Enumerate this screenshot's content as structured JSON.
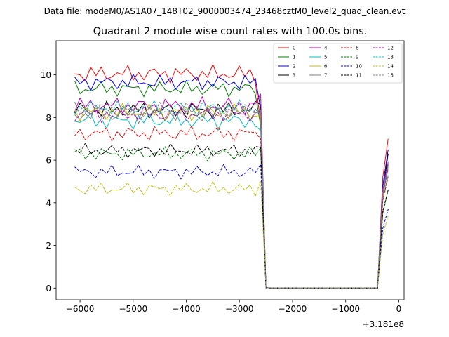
{
  "chart_data": {
    "type": "line",
    "suptitle": "Data file: modeM0/AS1A07_148T02_9000003474_23468cztM0_level2_quad_clean.evt",
    "title": "Quadrant 2 module wise count rates with 100.0s bins.",
    "xlabel": "",
    "ylabel": "",
    "offset_text": "+3.181e8",
    "xlim": [
      -6450,
      100
    ],
    "ylim": [
      -0.55,
      11.6
    ],
    "xticks": [
      -6000,
      -5000,
      -4000,
      -3000,
      -2000,
      -1000,
      0
    ],
    "xtick_labels": [
      "−6000",
      "−5000",
      "−4000",
      "−3000",
      "−2000",
      "−1000",
      "0"
    ],
    "yticks": [
      0,
      2,
      4,
      6,
      8,
      10
    ],
    "ytick_labels": [
      "0",
      "2",
      "4",
      "6",
      "8",
      "10"
    ],
    "legend_position": "upper right",
    "legend_columns": 4,
    "segment1_x_start": -6100,
    "segment1_x_end": -2600,
    "segment1_x_step": 100,
    "drop_x": -2500,
    "flat_x_end": -400,
    "segment2_x": [
      -300,
      -200
    ],
    "series": [
      {
        "name": "0",
        "color": "#ff0000",
        "dash": "solid",
        "mean": 10.05,
        "amp": 0.45,
        "end": 7.8,
        "drop": 0.02,
        "rise": [
          5.2,
          7.0
        ]
      },
      {
        "name": "1",
        "color": "#008000",
        "dash": "solid",
        "mean": 9.35,
        "amp": 0.4,
        "end": 7.6,
        "drop": 0.02,
        "rise": [
          4.5,
          5.8
        ]
      },
      {
        "name": "2",
        "color": "#0000ff",
        "dash": "solid",
        "mean": 9.65,
        "amp": 0.4,
        "end": 8.4,
        "drop": 0.02,
        "rise": [
          4.8,
          6.5
        ]
      },
      {
        "name": "3",
        "color": "#000000",
        "dash": "solid",
        "mean": 8.35,
        "amp": 0.45,
        "end": 8.6,
        "drop": 0.02,
        "rise": [
          4.5,
          6.3
        ]
      },
      {
        "name": "4",
        "color": "#bf00bf",
        "dash": "solid",
        "mean": 8.55,
        "amp": 0.45,
        "end": 9.1,
        "drop": 0.02,
        "rise": [
          4.6,
          5.9
        ]
      },
      {
        "name": "5",
        "color": "#00bfbf",
        "dash": "solid",
        "mean": 7.85,
        "amp": 0.45,
        "end": 7.4,
        "drop": 0.02,
        "rise": [
          4.2,
          5.3
        ]
      },
      {
        "name": "6",
        "color": "#bfbf00",
        "dash": "solid",
        "mean": 8.25,
        "amp": 0.45,
        "end": 8.0,
        "drop": 0.02,
        "rise": [
          4.3,
          5.6
        ]
      },
      {
        "name": "7",
        "color": "#808080",
        "dash": "solid",
        "mean": 8.15,
        "amp": 0.45,
        "end": 8.2,
        "drop": 0.02,
        "rise": [
          4.4,
          5.7
        ]
      },
      {
        "name": "8",
        "color": "#ff0000",
        "dash": "dashed",
        "mean": 7.25,
        "amp": 0.4,
        "end": 7.0,
        "drop": 0.02,
        "rise": [
          4.1,
          5.2
        ]
      },
      {
        "name": "9",
        "color": "#008000",
        "dash": "dashed",
        "mean": 6.3,
        "amp": 0.35,
        "end": 6.6,
        "drop": 0.02,
        "rise": [
          3.5,
          4.6
        ]
      },
      {
        "name": "10",
        "color": "#0000ff",
        "dash": "dashed",
        "mean": 5.45,
        "amp": 0.35,
        "end": 5.8,
        "drop": 0.02,
        "rise": [
          2.8,
          3.7
        ]
      },
      {
        "name": "11",
        "color": "#000000",
        "dash": "dashed",
        "mean": 6.45,
        "amp": 0.35,
        "end": 6.6,
        "drop": 0.02,
        "rise": [
          3.6,
          4.6
        ]
      },
      {
        "name": "12",
        "color": "#bf00bf",
        "dash": "dashed",
        "mean": 8.15,
        "amp": 0.4,
        "end": 8.2,
        "drop": 0.02,
        "rise": [
          4.4,
          5.6
        ]
      },
      {
        "name": "13",
        "color": "#00bfbf",
        "dash": "dashed",
        "mean": 8.45,
        "amp": 0.4,
        "end": 8.3,
        "drop": 0.02,
        "rise": [
          4.6,
          5.8
        ]
      },
      {
        "name": "14",
        "color": "#bfbf00",
        "dash": "dashed",
        "mean": 4.65,
        "amp": 0.35,
        "end": 5.0,
        "drop": 0.02,
        "rise": [
          2.5,
          3.4
        ]
      },
      {
        "name": "15",
        "color": "#808080",
        "dash": "dashed",
        "mean": 8.35,
        "amp": 0.4,
        "end": 8.4,
        "drop": 0.02,
        "rise": [
          4.5,
          5.8
        ]
      }
    ]
  }
}
